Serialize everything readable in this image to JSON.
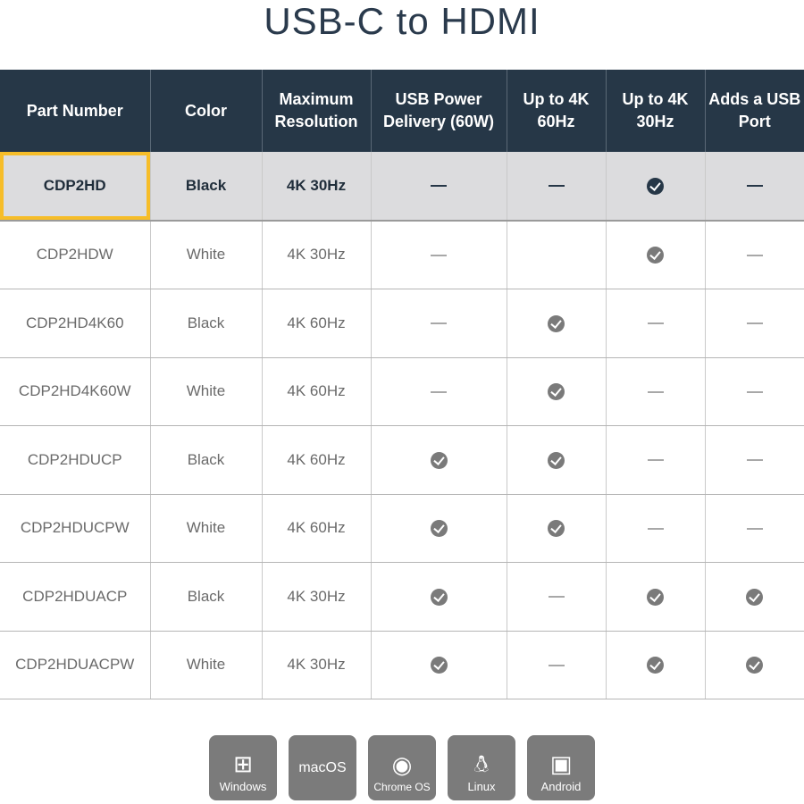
{
  "title": "USB-C to HDMI",
  "columns": [
    "Part Number",
    "Color",
    "Maximum Resolution",
    "USB Power Delivery (60W)",
    "Up to 4K 60Hz",
    "Up to 4K 30Hz",
    "Adds a USB Port"
  ],
  "highlight_color": "#f6bd29",
  "rows": [
    {
      "part": "CDP2HD",
      "color": "Black",
      "resolution": "4K 30Hz",
      "features": [
        "dash",
        "dash",
        "check",
        "dash"
      ],
      "highlighted": true
    },
    {
      "part": "CDP2HDW",
      "color": "White",
      "resolution": "4K 30Hz",
      "features": [
        "dash",
        "",
        "check",
        "dash"
      ]
    },
    {
      "part": "CDP2HD4K60",
      "color": "Black",
      "resolution": "4K 60Hz",
      "features": [
        "dash",
        "check",
        "dash",
        "dash"
      ]
    },
    {
      "part": "CDP2HD4K60W",
      "color": "White",
      "resolution": "4K 60Hz",
      "features": [
        "dash",
        "check",
        "dash",
        "dash"
      ]
    },
    {
      "part": "CDP2HDUCP",
      "color": "Black",
      "resolution": "4K 60Hz",
      "features": [
        "check",
        "check",
        "dash",
        "dash"
      ]
    },
    {
      "part": "CDP2HDUCPW",
      "color": "White",
      "resolution": "4K 60Hz",
      "features": [
        "check",
        "check",
        "dash",
        "dash"
      ]
    },
    {
      "part": "CDP2HDUACP",
      "color": "Black",
      "resolution": "4K 30Hz",
      "features": [
        "check",
        "dash",
        "check",
        "check"
      ]
    },
    {
      "part": "CDP2HDUACPW",
      "color": "White",
      "resolution": "4K 30Hz",
      "features": [
        "check",
        "dash",
        "check",
        "check"
      ]
    }
  ],
  "os": [
    {
      "label": "Windows",
      "icon": "windows-icon"
    },
    {
      "label": "macOS",
      "icon": ""
    },
    {
      "label": "Chrome OS",
      "icon": "chrome-icon"
    },
    {
      "label": "Linux",
      "icon": "linux-tux-icon"
    },
    {
      "label": "Android",
      "icon": "android-icon"
    }
  ]
}
